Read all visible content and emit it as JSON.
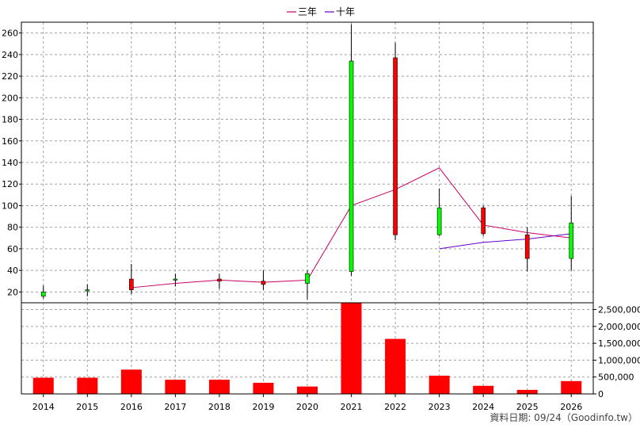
{
  "chart_data": {
    "type": "candlestick",
    "categories": [
      "2014",
      "2015",
      "2016",
      "2017",
      "2018",
      "2019",
      "2020",
      "2021",
      "2022",
      "2023",
      "2024",
      "2025",
      "2026"
    ],
    "price_axis": {
      "ylim": [
        10,
        270
      ],
      "ticks": [
        20,
        40,
        60,
        80,
        100,
        120,
        140,
        160,
        180,
        200,
        220,
        240,
        260
      ]
    },
    "volume_axis": {
      "ylim": [
        0,
        2700000
      ],
      "ticks": [
        0,
        500000,
        1000000,
        1500000,
        2000000,
        2500000
      ],
      "tick_labels": [
        "0",
        "500,000",
        "1,000,000",
        "1,500,000",
        "2,000,000",
        "2,500,000"
      ]
    },
    "candles": [
      {
        "year": "2014",
        "open": 20,
        "close": 16,
        "high": 26,
        "low": 14
      },
      {
        "year": "2015",
        "open": 22,
        "close": 21,
        "high": 27,
        "low": 16
      },
      {
        "year": "2016",
        "open": 22,
        "close": 32,
        "high": 46,
        "low": 18
      },
      {
        "year": "2017",
        "open": 32,
        "close": 31,
        "high": 37,
        "low": 25
      },
      {
        "year": "2018",
        "open": 30,
        "close": 32,
        "high": 37,
        "low": 23
      },
      {
        "year": "2019",
        "open": 27,
        "close": 30,
        "high": 40,
        "low": 22
      },
      {
        "year": "2020",
        "open": 37,
        "close": 28,
        "high": 40,
        "low": 13
      },
      {
        "year": "2021",
        "open": 234,
        "close": 39,
        "high": 268,
        "low": 35
      },
      {
        "year": "2022",
        "open": 73,
        "close": 237,
        "high": 251,
        "low": 68
      },
      {
        "year": "2023",
        "open": 98,
        "close": 73,
        "high": 116,
        "low": 72
      },
      {
        "year": "2024",
        "open": 74,
        "close": 98,
        "high": 100,
        "low": 72
      },
      {
        "year": "2025",
        "open": 51,
        "close": 73,
        "high": 80,
        "low": 39
      },
      {
        "year": "2026",
        "open": 84,
        "close": 51,
        "high": 109,
        "low": 40
      }
    ],
    "volume": [
      {
        "year": "2014",
        "value": 480000
      },
      {
        "year": "2015",
        "value": 480000
      },
      {
        "year": "2016",
        "value": 720000
      },
      {
        "year": "2017",
        "value": 420000
      },
      {
        "year": "2018",
        "value": 420000
      },
      {
        "year": "2019",
        "value": 330000
      },
      {
        "year": "2020",
        "value": 220000
      },
      {
        "year": "2021",
        "value": 2700000
      },
      {
        "year": "2022",
        "value": 1630000
      },
      {
        "year": "2023",
        "value": 540000
      },
      {
        "year": "2024",
        "value": 240000
      },
      {
        "year": "2025",
        "value": 120000
      },
      {
        "year": "2026",
        "value": 380000
      }
    ],
    "series": [
      {
        "name": "三年",
        "color": "#cc0066",
        "points": [
          [
            "2016",
            24
          ],
          [
            "2017",
            28
          ],
          [
            "2018",
            31
          ],
          [
            "2019",
            29
          ],
          [
            "2020",
            31
          ],
          [
            "2021",
            100
          ],
          [
            "2022",
            115
          ],
          [
            "2023",
            135
          ],
          [
            "2024",
            82
          ],
          [
            "2025",
            75
          ],
          [
            "2026",
            70
          ]
        ]
      },
      {
        "name": "十年",
        "color": "#6600cc",
        "points": [
          [
            "2023",
            60
          ],
          [
            "2024",
            66
          ],
          [
            "2025",
            69
          ],
          [
            "2026",
            74
          ]
        ]
      }
    ],
    "legend_position": "top-center",
    "grid": true,
    "colors": {
      "rise": "#ff0000",
      "fall": "#00ff00",
      "volume": "#ff0000",
      "wick": "#000000",
      "candle_border": "#000000"
    }
  },
  "footer": "資料日期: 09/24（Goodinfo.tw）"
}
